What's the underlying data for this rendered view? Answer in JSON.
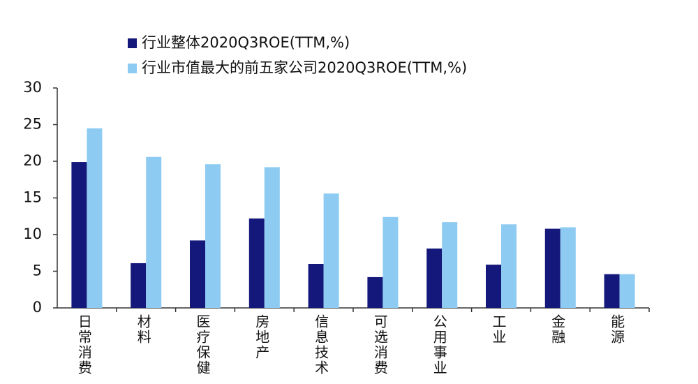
{
  "chart_data": {
    "type": "bar",
    "categories": [
      "日常消费",
      "材料",
      "医疗保健",
      "房地产",
      "信息技术",
      "可选消费",
      "公用事业",
      "工业",
      "金融",
      "能源"
    ],
    "series": [
      {
        "name": "行业整体2020Q3ROE(TTM,%)",
        "color": "#14187a",
        "values": [
          19.9,
          6.1,
          9.2,
          12.2,
          6.0,
          4.2,
          8.1,
          5.9,
          10.8,
          4.6
        ]
      },
      {
        "name": "行业市值最大的前五家公司2020Q3ROE(TTM,%)",
        "color": "#8ecbf2",
        "values": [
          24.5,
          20.6,
          19.6,
          19.2,
          15.6,
          12.4,
          11.7,
          11.4,
          11.0,
          4.6
        ]
      }
    ],
    "ylim": [
      0,
      30
    ],
    "yticks": [
      0,
      5,
      10,
      15,
      20,
      25,
      30
    ]
  }
}
